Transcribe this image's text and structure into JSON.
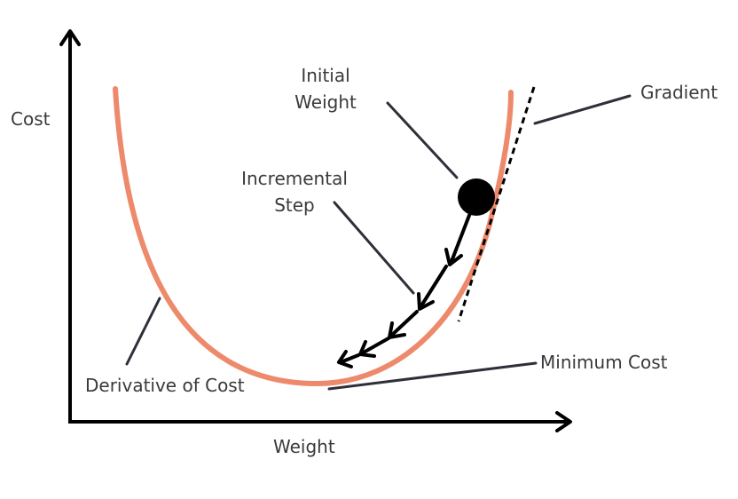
{
  "axes": {
    "y_label": "Cost",
    "x_label": "Weight"
  },
  "labels": {
    "initial_weight": [
      "Initial",
      "Weight"
    ],
    "incremental_step": [
      "Incremental",
      "Step"
    ],
    "gradient": "Gradient",
    "minimum_cost": "Minimum Cost",
    "derivative_of_cost": "Derivative of Cost"
  },
  "colors": {
    "curve": "#ee8a6c",
    "ink": "#000000",
    "pointer": "#2f2f3a",
    "text": "#3a3a3a"
  }
}
